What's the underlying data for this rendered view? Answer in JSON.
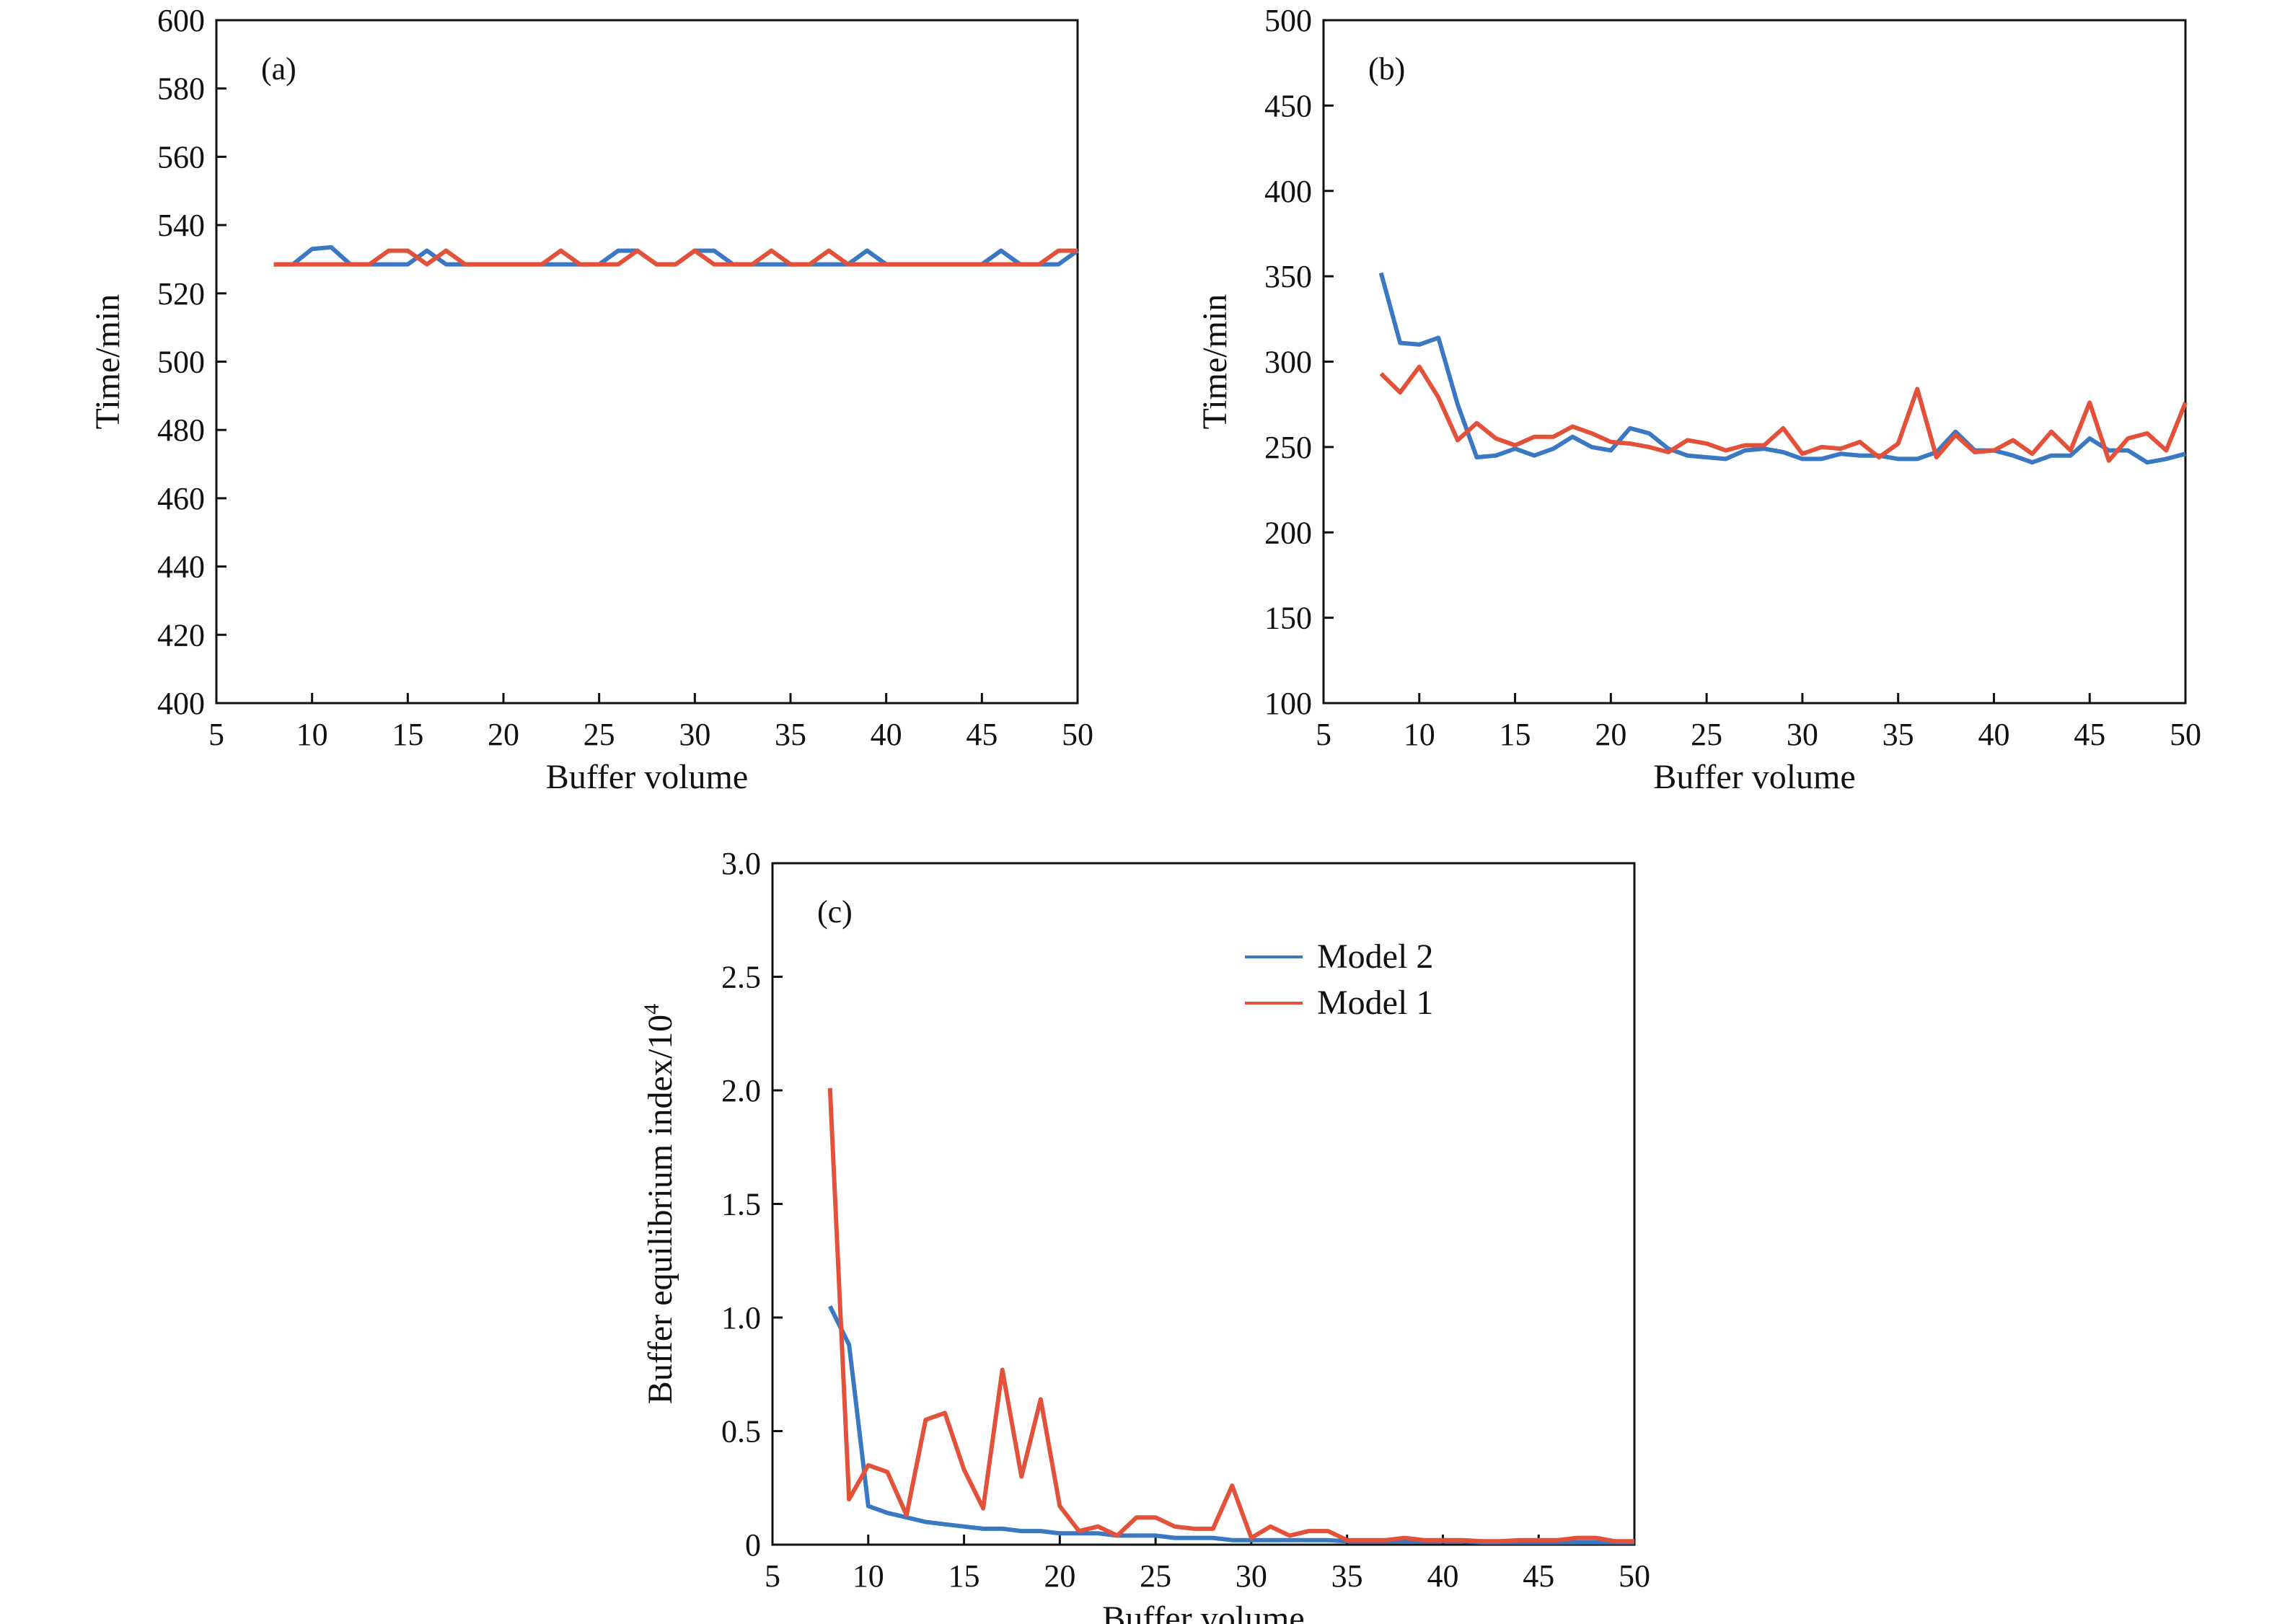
{
  "colors": {
    "model2": "#3a78c3",
    "model1": "#e4513a"
  },
  "chart_data": [
    {
      "type": "line",
      "panel": "(a)",
      "xlabel": "Buffer volume",
      "ylabel": "Time/min",
      "xlim": [
        5,
        50
      ],
      "ylim": [
        400,
        600
      ],
      "xticks": [
        5,
        10,
        15,
        20,
        25,
        30,
        35,
        40,
        45,
        50
      ],
      "yticks": [
        400,
        420,
        440,
        460,
        480,
        500,
        520,
        540,
        560,
        580,
        600
      ],
      "x": [
        8,
        9,
        10,
        11,
        12,
        13,
        14,
        15,
        16,
        17,
        18,
        19,
        20,
        21,
        22,
        23,
        24,
        25,
        26,
        27,
        28,
        29,
        30,
        31,
        32,
        33,
        34,
        35,
        36,
        37,
        38,
        39,
        40,
        41,
        42,
        43,
        44,
        45,
        46,
        47,
        48,
        49,
        50
      ],
      "series": [
        {
          "name": "Model 2",
          "color": "#3a78c3",
          "values": [
            528.5,
            528.5,
            533,
            533.5,
            528.5,
            528.5,
            528.5,
            528.5,
            532.5,
            528.5,
            528.5,
            528.5,
            528.5,
            528.5,
            528.5,
            528.5,
            528.5,
            528.5,
            532.5,
            532.5,
            528.5,
            528.5,
            532.5,
            532.5,
            528.5,
            528.5,
            528.5,
            528.5,
            528.5,
            528.5,
            528.5,
            532.5,
            528.5,
            528.5,
            528.5,
            528.5,
            528.5,
            528.5,
            532.5,
            528.5,
            528.5,
            528.5,
            532.5
          ]
        },
        {
          "name": "Model 1",
          "color": "#e4513a",
          "values": [
            528.5,
            528.5,
            528.5,
            528.5,
            528.5,
            528.5,
            532.5,
            532.5,
            528.5,
            532.5,
            528.5,
            528.5,
            528.5,
            528.5,
            528.5,
            532.5,
            528.5,
            528.5,
            528.5,
            532.5,
            528.5,
            528.5,
            532.5,
            528.5,
            528.5,
            528.5,
            532.5,
            528.5,
            528.5,
            532.5,
            528.5,
            528.5,
            528.5,
            528.5,
            528.5,
            528.5,
            528.5,
            528.5,
            528.5,
            528.5,
            528.5,
            532.5,
            532.5
          ]
        }
      ]
    },
    {
      "type": "line",
      "panel": "(b)",
      "xlabel": "Buffer volume",
      "ylabel": "Time/min",
      "xlim": [
        5,
        50
      ],
      "ylim": [
        100,
        500
      ],
      "xticks": [
        5,
        10,
        15,
        20,
        25,
        30,
        35,
        40,
        45,
        50
      ],
      "yticks": [
        100,
        150,
        200,
        250,
        300,
        350,
        400,
        450,
        500
      ],
      "x": [
        8,
        9,
        10,
        11,
        12,
        13,
        14,
        15,
        16,
        17,
        18,
        19,
        20,
        21,
        22,
        23,
        24,
        25,
        26,
        27,
        28,
        29,
        30,
        31,
        32,
        33,
        34,
        35,
        36,
        37,
        38,
        39,
        40,
        41,
        42,
        43,
        44,
        45,
        46,
        47,
        48,
        49,
        50
      ],
      "series": [
        {
          "name": "Model 2",
          "color": "#3a78c3",
          "values": [
            352,
            311,
            310,
            314,
            275,
            244,
            245,
            249,
            245,
            249,
            256,
            250,
            248,
            261,
            258,
            249,
            245,
            244,
            243,
            248,
            249,
            247,
            243,
            243,
            246,
            245,
            245,
            243,
            243,
            247,
            259,
            248,
            248,
            245,
            241,
            245,
            245,
            255,
            248,
            248,
            241,
            243,
            246
          ]
        },
        {
          "name": "Model 1",
          "color": "#e4513a",
          "values": [
            293,
            282,
            297,
            279,
            254,
            264,
            255,
            251,
            256,
            256,
            262,
            258,
            253,
            252,
            250,
            247,
            254,
            252,
            248,
            251,
            251,
            261,
            246,
            250,
            249,
            253,
            244,
            252,
            284,
            244,
            257,
            247,
            248,
            254,
            246,
            259,
            248,
            276,
            242,
            255,
            258,
            248,
            276
          ]
        }
      ]
    },
    {
      "type": "line",
      "panel": "(c)",
      "xlabel": "Buffer volume",
      "ylabel": "Buffer equilibrium index/10",
      "ylabel_sup": "4",
      "xlim": [
        5,
        50
      ],
      "ylim": [
        0,
        3.0
      ],
      "xticks": [
        5,
        10,
        15,
        20,
        25,
        30,
        35,
        40,
        45,
        50
      ],
      "yticks": [
        0,
        0.5,
        1.0,
        1.5,
        2.0,
        2.5,
        3.0
      ],
      "ytick_labels": [
        "0",
        "0.5",
        "1.0",
        "1.5",
        "2.0",
        "2.5",
        "3.0"
      ],
      "legend": {
        "position": "top-center",
        "entries": [
          "Model 2",
          "Model 1"
        ]
      },
      "x": [
        8,
        9,
        10,
        11,
        12,
        13,
        14,
        15,
        16,
        17,
        18,
        19,
        20,
        21,
        22,
        23,
        24,
        25,
        26,
        27,
        28,
        29,
        30,
        31,
        32,
        33,
        34,
        35,
        36,
        37,
        38,
        39,
        40,
        41,
        42,
        43,
        44,
        45,
        46,
        47,
        48,
        49,
        50
      ],
      "series": [
        {
          "name": "Model 2",
          "color": "#3a78c3",
          "values": [
            1.05,
            0.88,
            0.17,
            0.14,
            0.12,
            0.1,
            0.09,
            0.08,
            0.07,
            0.07,
            0.06,
            0.06,
            0.05,
            0.05,
            0.05,
            0.04,
            0.04,
            0.04,
            0.03,
            0.03,
            0.03,
            0.02,
            0.02,
            0.02,
            0.02,
            0.02,
            0.02,
            0.015,
            0.015,
            0.015,
            0.015,
            0.015,
            0.015,
            0.015,
            0.01,
            0.01,
            0.01,
            0.01,
            0.01,
            0.01,
            0.01,
            0.01,
            0.01
          ]
        },
        {
          "name": "Model 1",
          "color": "#e4513a",
          "values": [
            2.01,
            0.2,
            0.35,
            0.32,
            0.13,
            0.55,
            0.58,
            0.33,
            0.16,
            0.77,
            0.3,
            0.64,
            0.17,
            0.06,
            0.08,
            0.04,
            0.12,
            0.12,
            0.08,
            0.07,
            0.07,
            0.26,
            0.03,
            0.08,
            0.04,
            0.06,
            0.06,
            0.02,
            0.02,
            0.02,
            0.03,
            0.02,
            0.02,
            0.02,
            0.015,
            0.015,
            0.02,
            0.02,
            0.02,
            0.03,
            0.03,
            0.015,
            0.015
          ]
        }
      ]
    }
  ]
}
